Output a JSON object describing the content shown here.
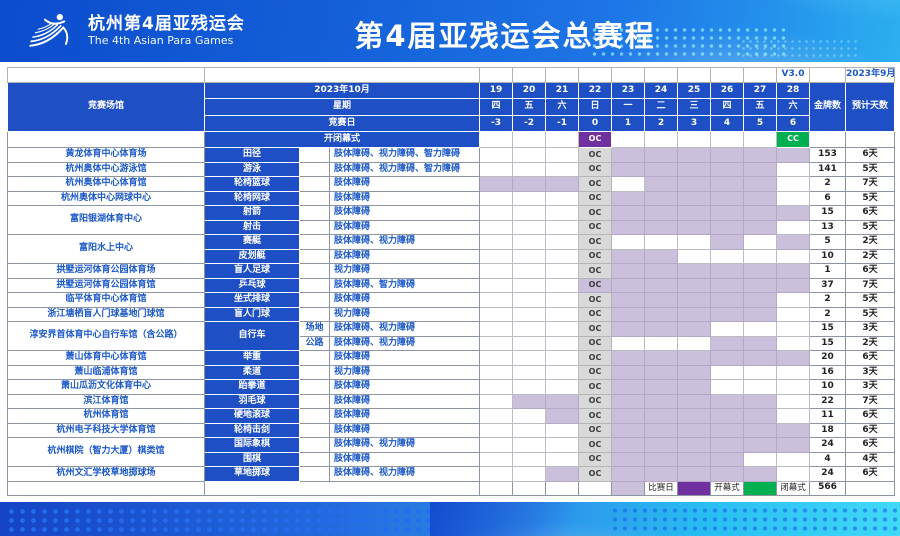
{
  "banner": {
    "logo_title": "杭州第4届亚残运会",
    "logo_subtitle": "The 4th Asian Para Games",
    "title": "第4届亚残运会总赛程"
  },
  "meta": {
    "version": "V3.0",
    "issued": "2023年9月"
  },
  "header": {
    "venue_label": "竞赛场馆",
    "month_label": "2023年10月",
    "week_label": "星期",
    "compday_label": "竞赛日",
    "ceremony_label": "开闭幕式",
    "gold_label": "金牌数",
    "estdays_label": "预计天数",
    "dates": [
      "19",
      "20",
      "21",
      "22",
      "23",
      "24",
      "25",
      "26",
      "27",
      "28"
    ],
    "weekdays": [
      "四",
      "五",
      "六",
      "日",
      "一",
      "二",
      "三",
      "四",
      "五",
      "六"
    ],
    "comp_days": [
      "-3",
      "-2",
      "-1",
      "0",
      "1",
      "2",
      "3",
      "4",
      "5",
      "6"
    ],
    "oc_label": "OC",
    "cc_label": "CC",
    "oc_date": 22,
    "cc_date": 28
  },
  "rows": [
    {
      "venue": "黄龙体育中心体育场",
      "vspan": 1,
      "sport": "田径",
      "sub": "",
      "cats": "肢体障碍、视力障碍、智力障碍",
      "comp": [
        23,
        24,
        25,
        26,
        27,
        28
      ],
      "gold": "153",
      "days": "6天"
    },
    {
      "sport": "游泳",
      "venue": "杭州奥体中心游泳馆",
      "vspan": 1,
      "sub": "",
      "cats": "肢体障碍、视力障碍、智力障碍",
      "comp": [
        23,
        24,
        25,
        26,
        27
      ],
      "gold": "141",
      "days": "5天"
    },
    {
      "sport": "轮椅篮球",
      "venue": "杭州奥体中心体育馆",
      "vspan": 1,
      "sub": "",
      "cats": "肢体障碍",
      "comp": [
        19,
        20,
        21,
        24,
        25,
        26,
        27
      ],
      "gold": "2",
      "days": "7天"
    },
    {
      "sport": "轮椅网球",
      "venue": "杭州奥体中心网球中心",
      "vspan": 1,
      "sub": "",
      "cats": "肢体障碍",
      "comp": [
        23,
        24,
        25,
        26,
        27
      ],
      "gold": "6",
      "days": "5天"
    },
    {
      "sport": "射箭",
      "venue": "富阳银湖体育中心",
      "vspan": 2,
      "sub": "",
      "cats": "肢体障碍",
      "comp": [
        23,
        24,
        25,
        26,
        27,
        28
      ],
      "gold": "15",
      "days": "6天"
    },
    {
      "sport": "射击",
      "sub": "",
      "cats": "肢体障碍",
      "comp": [
        23,
        24,
        25,
        26,
        27
      ],
      "gold": "13",
      "days": "5天"
    },
    {
      "sport": "赛艇",
      "venue": "富阳水上中心",
      "vspan": 2,
      "sub": "",
      "cats": "肢体障碍、视力障碍",
      "comp": [
        26,
        28
      ],
      "gold": "5",
      "days": "2天"
    },
    {
      "sport": "皮划艇",
      "sub": "",
      "cats": "肢体障碍",
      "comp": [
        23,
        24
      ],
      "gold": "10",
      "days": "2天"
    },
    {
      "sport": "盲人足球",
      "venue": "拱墅运河体育公园体育场",
      "vspan": 1,
      "sub": "",
      "cats": "视力障碍",
      "comp": [
        23,
        24,
        25,
        26,
        27,
        28
      ],
      "gold": "1",
      "days": "6天"
    },
    {
      "sport": "乒乓球",
      "venue": "拱墅运河体育公园体育馆",
      "vspan": 1,
      "sub": "",
      "cats": "肢体障碍、智力障碍",
      "comp": [
        22,
        23,
        24,
        25,
        26,
        27,
        28
      ],
      "gold": "37",
      "days": "7天"
    },
    {
      "sport": "坐式排球",
      "venue": "临平体育中心体育馆",
      "vspan": 1,
      "sub": "",
      "cats": "肢体障碍",
      "comp": [
        23,
        24,
        25,
        26,
        27
      ],
      "gold": "2",
      "days": "5天"
    },
    {
      "sport": "盲人门球",
      "venue": "浙江塘栖盲人门球基地门球馆",
      "vspan": 1,
      "sub": "",
      "cats": "视力障碍",
      "comp": [
        23,
        24,
        25,
        26,
        27
      ],
      "gold": "2",
      "days": "5天"
    },
    {
      "sport": "自行车",
      "sspan": 2,
      "venue": "淳安界首体育中心自行车馆（含公路）",
      "vspan": 2,
      "sub": "场地",
      "cats": "肢体障碍、视力障碍",
      "comp": [
        23,
        24,
        25
      ],
      "gold": "15",
      "days": "3天"
    },
    {
      "sub": "公路",
      "cats": "肢体障碍、视力障碍",
      "comp": [
        26,
        27
      ],
      "gold": "15",
      "days": "2天"
    },
    {
      "sport": "举重",
      "venue": "萧山体育中心体育馆",
      "vspan": 1,
      "sub": "",
      "cats": "肢体障碍",
      "comp": [
        23,
        24,
        25,
        26,
        27,
        28
      ],
      "gold": "20",
      "days": "6天"
    },
    {
      "sport": "柔道",
      "venue": "萧山临浦体育馆",
      "vspan": 1,
      "sub": "",
      "cats": "视力障碍",
      "comp": [
        23,
        24,
        25
      ],
      "gold": "16",
      "days": "3天"
    },
    {
      "sport": "跆拳道",
      "venue": "萧山瓜沥文化体育中心",
      "vspan": 1,
      "sub": "",
      "cats": "肢体障碍",
      "comp": [
        23,
        24,
        25
      ],
      "gold": "10",
      "days": "3天"
    },
    {
      "sport": "羽毛球",
      "venue": "滨江体育馆",
      "vspan": 1,
      "sub": "",
      "cats": "肢体障碍",
      "comp": [
        20,
        21,
        23,
        24,
        25,
        26,
        27
      ],
      "gold": "22",
      "days": "7天"
    },
    {
      "sport": "硬地滚球",
      "venue": "杭州体育馆",
      "vspan": 1,
      "sub": "",
      "cats": "肢体障碍",
      "comp": [
        21,
        23,
        24,
        25,
        26,
        27
      ],
      "gold": "11",
      "days": "6天"
    },
    {
      "sport": "轮椅击剑",
      "venue": "杭州电子科技大学体育馆",
      "vspan": 1,
      "sub": "",
      "cats": "肢体障碍",
      "comp": [
        23,
        24,
        25,
        26,
        27,
        28
      ],
      "gold": "18",
      "days": "6天"
    },
    {
      "sport": "国际象棋",
      "venue": "杭州棋院（智力大厦）棋类馆",
      "vspan": 2,
      "sub": "",
      "cats": "肢体障碍、视力障碍",
      "comp": [
        23,
        24,
        25,
        26,
        27,
        28
      ],
      "gold": "24",
      "days": "6天"
    },
    {
      "sport": "围棋",
      "sub": "",
      "cats": "肢体障碍",
      "comp": [
        23,
        24,
        25,
        26
      ],
      "gold": "4",
      "days": "4天"
    },
    {
      "sport": "草地掷球",
      "venue": "杭州文汇学校草地掷球场",
      "vspan": 1,
      "sub": "",
      "cats": "肢体障碍、视力障碍",
      "comp": [
        21,
        23,
        24,
        25,
        26,
        27
      ],
      "gold": "24",
      "days": "6天"
    }
  ],
  "legend": {
    "race_label": "比赛日",
    "open_label": "开幕式",
    "close_label": "闭幕式",
    "total_gold": "566"
  },
  "colors": {
    "header_blue": "#1e4fc5",
    "accent_text": "#1b58c8",
    "lavender": "#cbc0db",
    "oc_grey": "#d9d9d9",
    "purple": "#7030a0",
    "green": "#00b050",
    "banner_blue": "#1561d9",
    "cyan": "#41d9f8"
  }
}
